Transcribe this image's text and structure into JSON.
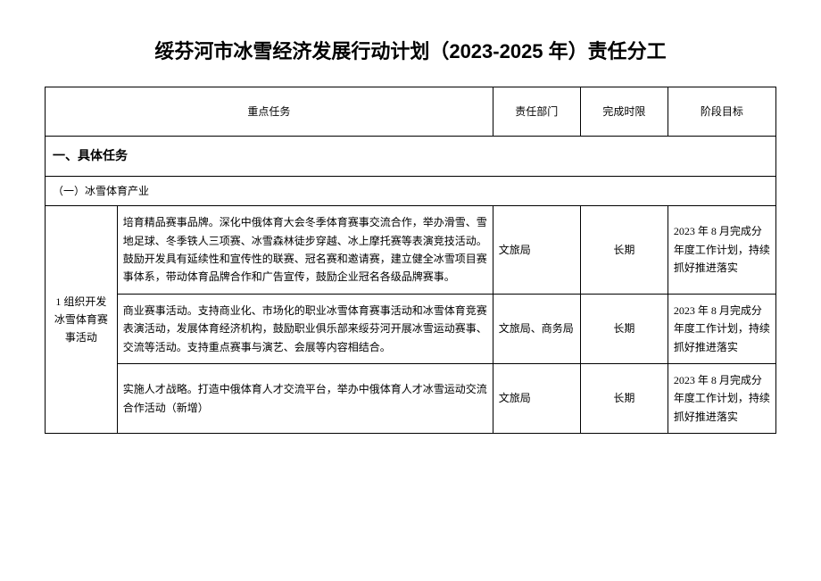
{
  "title": "绥芬河市冰雪经济发展行动计划（2023-2025 年）责任分工",
  "headers": {
    "col2": "重点任务",
    "col3": "责任部门",
    "col4": "完成时限",
    "col5": "阶段目标"
  },
  "section1": {
    "title": "一、具体任务",
    "subsection": "（一）冰雪体育产业"
  },
  "group1": {
    "label": "1 组织开发冰雪体育赛事活动",
    "rows": [
      {
        "task": "培育精品赛事品牌。深化中俄体育大会冬季体育赛事交流合作，举办滑雪、雪地足球、冬季铁人三项赛、冰雪森林徒步穿越、冰上摩托赛等表演竞技活动。鼓励开发具有延续性和宣传性的联赛、冠名赛和邀请赛，建立健全冰雪项目赛事体系，带动体育品牌合作和广告宣传，鼓励企业冠名各级品牌赛事。",
        "dept": "文旅局",
        "time": "长期",
        "goal": "2023 年 8 月完成分年度工作计划，持续抓好推进落实"
      },
      {
        "task": "商业赛事活动。支持商业化、市场化的职业冰雪体育赛事活动和冰雪体育竞赛表演活动，发展体育经济机构，鼓励职业俱乐部来绥芬河开展冰雪运动赛事、交流等活动。支持重点赛事与演艺、会展等内容相结合。",
        "dept": "文旅局、商务局",
        "time": "长期",
        "goal": "2023 年 8 月完成分年度工作计划，持续抓好推进落实"
      },
      {
        "task": "实施人才战略。打造中俄体育人才交流平台，举办中俄体育人才冰雪运动交流合作活动（新增）",
        "dept": "文旅局",
        "time": "长期",
        "goal": "2023 年 8 月完成分年度工作计划，持续抓好推进落实"
      }
    ]
  }
}
